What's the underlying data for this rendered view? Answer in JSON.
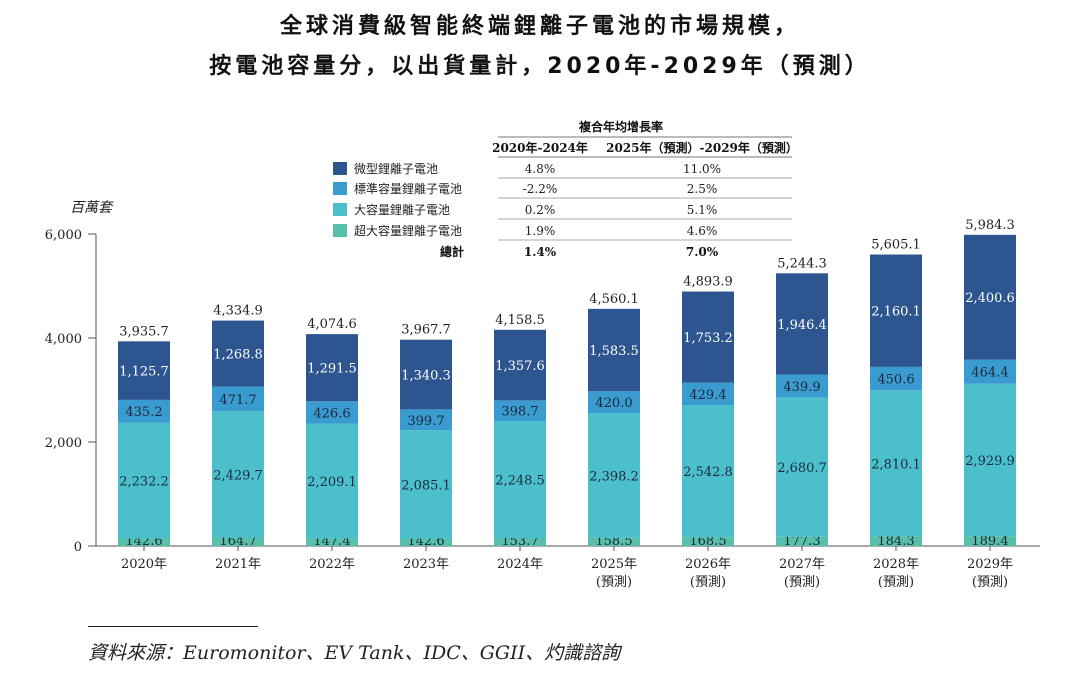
{
  "title_line1": "全球消費級智能終端鋰離子電池的市場規模，",
  "title_line2": "按電池容量分，以出貨量計，2020年-2029年（預測）",
  "source": "資料來源：Euromonitor、EV Tank、IDC、GGII、灼識諮詢",
  "colors": {
    "micro": "#2d5590",
    "standard": "#3a9bd1",
    "large": "#4cbfcd",
    "xlarge": "#58bfaa"
  },
  "chart_data": {
    "type": "bar",
    "stacked": true,
    "ylabel": "百萬套",
    "ylim": [
      0,
      6000
    ],
    "yticks": [
      "0",
      "2,000",
      "4,000",
      "6,000"
    ],
    "ytick_values": [
      0,
      2000,
      4000,
      6000
    ],
    "categories": [
      "2020年",
      "2021年",
      "2022年",
      "2023年",
      "2024年",
      "2025年",
      "2026年",
      "2027年",
      "2028年",
      "2029年"
    ],
    "category_sublabels": [
      "",
      "",
      "",
      "",
      "",
      "(預測)",
      "(預測)",
      "(預測)",
      "(預測)",
      "(預測)"
    ],
    "series": [
      {
        "name": "超大容量鋰離子電池",
        "key": "xlarge",
        "values": [
          142.6,
          164.7,
          147.4,
          142.6,
          153.7,
          158.5,
          168.5,
          177.3,
          184.3,
          189.4
        ],
        "labels": [
          "142.6",
          "164.7",
          "147.4",
          "142.6",
          "153.7",
          "158.5",
          "168.5",
          "177.3",
          "184.3",
          "189.4"
        ]
      },
      {
        "name": "大容量鋰離子電池",
        "key": "large",
        "values": [
          2232.2,
          2429.7,
          2209.1,
          2085.1,
          2248.5,
          2398.2,
          2542.8,
          2680.7,
          2810.1,
          2929.9
        ],
        "labels": [
          "2,232.2",
          "2,429.7",
          "2,209.1",
          "2,085.1",
          "2,248.5",
          "2,398.2",
          "2,542.8",
          "2,680.7",
          "2,810.1",
          "2,929.9"
        ]
      },
      {
        "name": "標準容量鋰離子電池",
        "key": "standard",
        "values": [
          435.2,
          471.7,
          426.6,
          399.7,
          398.7,
          420.0,
          429.4,
          439.9,
          450.6,
          464.4
        ],
        "labels": [
          "435.2",
          "471.7",
          "426.6",
          "399.7",
          "398.7",
          "420.0",
          "429.4",
          "439.9",
          "450.6",
          "464.4"
        ]
      },
      {
        "name": "微型鋰離子電池",
        "key": "micro",
        "values": [
          1125.7,
          1268.8,
          1291.5,
          1340.3,
          1357.6,
          1583.5,
          1753.2,
          1946.4,
          2160.1,
          2400.6
        ],
        "labels": [
          "1,125.7",
          "1,268.8",
          "1,291.5",
          "1,340.3",
          "1,357.6",
          "1,583.5",
          "1,753.2",
          "1,946.4",
          "2,160.1",
          "2,400.6"
        ]
      }
    ],
    "totals": [
      3935.7,
      4334.9,
      4074.6,
      3967.7,
      4158.5,
      4560.1,
      4893.9,
      5244.3,
      5605.1,
      5984.3
    ],
    "total_labels": [
      "3,935.7",
      "4,334.9",
      "4,074.6",
      "3,967.7",
      "4,158.5",
      "4,560.1",
      "4,893.9",
      "5,244.3",
      "5,605.1",
      "5,984.3"
    ],
    "cagr_table": {
      "header": "複合年均增長率",
      "col1": "2020年-2024年",
      "col2": "2025年（預測）-2029年（預測）",
      "rows": [
        {
          "key": "micro",
          "name": "微型鋰離子電池",
          "c1": "4.8%",
          "c2": "11.0%"
        },
        {
          "key": "standard",
          "name": "標準容量鋰離子電池",
          "c1": "-2.2%",
          "c2": "2.5%"
        },
        {
          "key": "large",
          "name": "大容量鋰離子電池",
          "c1": "0.2%",
          "c2": "5.1%"
        },
        {
          "key": "xlarge",
          "name": "超大容量鋰離子電池",
          "c1": "1.9%",
          "c2": "4.6%"
        }
      ],
      "total_row": {
        "name": "總計",
        "c1": "1.4%",
        "c2": "7.0%"
      }
    }
  }
}
